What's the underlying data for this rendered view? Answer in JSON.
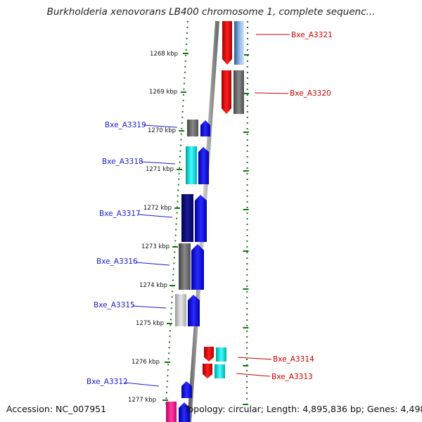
{
  "title": "Burkholderia xenovorans LB400 chromosome 1, complete sequenc...",
  "footer": {
    "accession": "Accession: NC_007951",
    "summary": "Topology: circular; Length: 4,895,836 bp; Genes: 4,498"
  },
  "axis_labels": [
    "1268 kbp",
    "1269 kbp",
    "1270 kbp",
    "1271 kbp",
    "1272 kbp",
    "1273 kbp",
    "1274 kbp",
    "1275 kbp",
    "1276 kbp",
    "1277 kbp"
  ],
  "genes_right": [
    {
      "id": "Bxe_A3321",
      "color": "#cc0000"
    },
    {
      "id": "Bxe_A3320",
      "color": "#cc0000"
    },
    {
      "id": "Bxe_A3314",
      "color": "#cc0000"
    },
    {
      "id": "Bxe_A3313",
      "color": "#cc0000"
    }
  ],
  "genes_left": [
    {
      "id": "Bxe_A3319",
      "color": "#1a1acc"
    },
    {
      "id": "Bxe_A3318",
      "color": "#1a1acc"
    },
    {
      "id": "Bxe_A3317",
      "color": "#1a1acc"
    },
    {
      "id": "Bxe_A3316",
      "color": "#1a1acc"
    },
    {
      "id": "Bxe_A3315",
      "color": "#1a1acc"
    },
    {
      "id": "Bxe_A3312",
      "color": "#1a1acc"
    }
  ],
  "colors": {
    "forward_strand": "#ee0000",
    "reverse_strand": "#0000ee",
    "tick": "#117711",
    "backbone": "#888888"
  }
}
